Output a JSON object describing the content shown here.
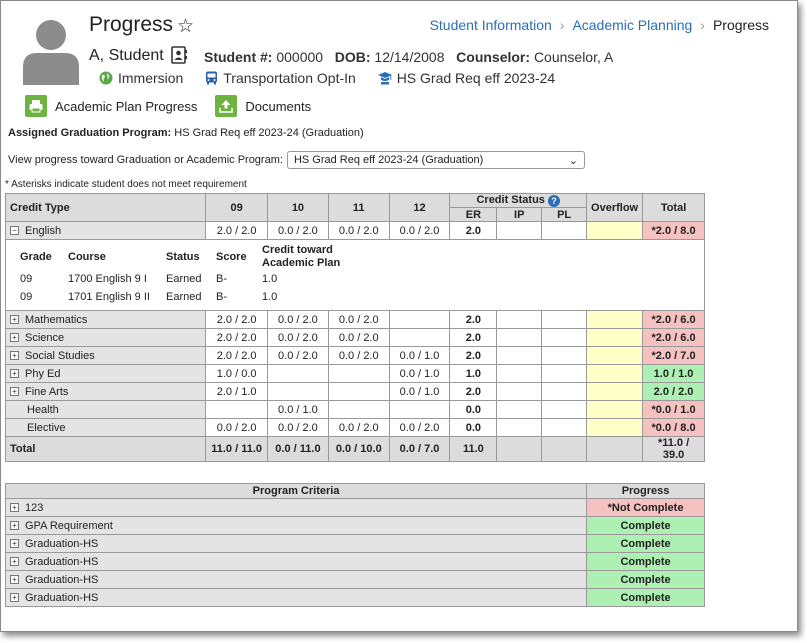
{
  "header": {
    "title": "Progress",
    "breadcrumbs": [
      "Student Information",
      "Academic Planning",
      "Progress"
    ]
  },
  "student": {
    "name": "A, Student",
    "number_label": "Student #:",
    "number": "000000",
    "dob_label": "DOB:",
    "dob": "12/14/2008",
    "counselor_label": "Counselor:",
    "counselor": "Counselor, A",
    "flags": [
      "Immersion",
      "Transportation Opt-In",
      "HS Grad Req eff 2023-24"
    ]
  },
  "tools": {
    "academic_plan_progress": "Academic Plan Progress",
    "documents": "Documents"
  },
  "assigned": {
    "label": "Assigned Graduation Program:",
    "value": "HS Grad Req eff 2023-24 (Graduation)"
  },
  "view": {
    "label": "View progress toward Graduation or Academic Program:",
    "selected": "HS Grad Req eff 2023-24 (Graduation)"
  },
  "note": "* Asterisks indicate student does not meet requirement",
  "credit_table": {
    "headers": {
      "credit_type": "Credit Type",
      "grades": [
        "09",
        "10",
        "11",
        "12"
      ],
      "credit_status": "Credit Status",
      "status_cols": [
        "ER",
        "IP",
        "PL"
      ],
      "overflow": "Overflow",
      "total": "Total"
    },
    "english": {
      "label": "English",
      "grades": [
        "2.0 / 2.0",
        "0.0 / 2.0",
        "0.0 / 2.0",
        "0.0 / 2.0"
      ],
      "er": "2.0",
      "total": "*2.0 / 8.0"
    },
    "course_headers": {
      "grade": "Grade",
      "course": "Course",
      "status": "Status",
      "score": "Score",
      "credit_line1": "Credit toward",
      "credit_line2": "Academic Plan"
    },
    "courses": [
      {
        "grade": "09",
        "course": "1700 English 9 I",
        "status": "Earned",
        "score": "B-",
        "credit": "1.0"
      },
      {
        "grade": "09",
        "course": "1701 English 9 II",
        "status": "Earned",
        "score": "B-",
        "credit": "1.0"
      }
    ],
    "rows": [
      {
        "label": "Mathematics",
        "g09": "2.0 / 2.0",
        "g10": "0.0 / 2.0",
        "g11": "0.0 / 2.0",
        "g12": "",
        "er": "2.0",
        "total": "*2.0 / 6.0",
        "total_status": "red"
      },
      {
        "label": "Science",
        "g09": "2.0 / 2.0",
        "g10": "0.0 / 2.0",
        "g11": "0.0 / 2.0",
        "g12": "",
        "er": "2.0",
        "total": "*2.0 / 6.0",
        "total_status": "red"
      },
      {
        "label": "Social Studies",
        "g09": "2.0 / 2.0",
        "g10": "0.0 / 2.0",
        "g11": "0.0 / 2.0",
        "g12": "0.0 / 1.0",
        "er": "2.0",
        "total": "*2.0 / 7.0",
        "total_status": "red"
      },
      {
        "label": "Phy Ed",
        "g09": "1.0 / 0.0",
        "g10": "",
        "g11": "",
        "g12": "0.0 / 1.0",
        "er": "1.0",
        "total": "1.0 / 1.0",
        "total_status": "green"
      },
      {
        "label": "Fine Arts",
        "g09": "2.0 / 1.0",
        "g10": "",
        "g11": "",
        "g12": "0.0 / 1.0",
        "er": "2.0",
        "total": "2.0 / 2.0",
        "total_status": "green"
      }
    ],
    "health": {
      "label": "Health",
      "g10": "0.0 / 1.0",
      "er": "0.0",
      "total": "*0.0 / 1.0"
    },
    "elective": {
      "label": "Elective",
      "g09": "0.0 / 2.0",
      "g10": "0.0 / 2.0",
      "g11": "0.0 / 2.0",
      "g12": "0.0 / 2.0",
      "er": "0.0",
      "total": "*0.0 / 8.0"
    },
    "total_row": {
      "label": "Total",
      "g09": "11.0 / 11.0",
      "g10": "0.0 / 11.0",
      "g11": "0.0 / 10.0",
      "g12": "0.0 / 7.0",
      "er": "11.0",
      "total": "*11.0 / 39.0"
    }
  },
  "program_table": {
    "headers": {
      "criteria": "Program Criteria",
      "progress": "Progress"
    },
    "rows": [
      {
        "label": "123",
        "progress": "*Not Complete"
      },
      {
        "label": "GPA Requirement",
        "progress": "Complete"
      },
      {
        "label": "Graduation-HS",
        "progress": "Complete"
      },
      {
        "label": "Graduation-HS",
        "progress": "Complete"
      },
      {
        "label": "Graduation-HS",
        "progress": "Complete"
      },
      {
        "label": "Graduation-HS",
        "progress": "Complete"
      }
    ]
  },
  "colors": {
    "link": "#2a6eb8",
    "green_icon": "#6cb33f",
    "fail": "#f6c1c1",
    "pass": "#aef0b4",
    "overflow": "#ffffc8"
  }
}
